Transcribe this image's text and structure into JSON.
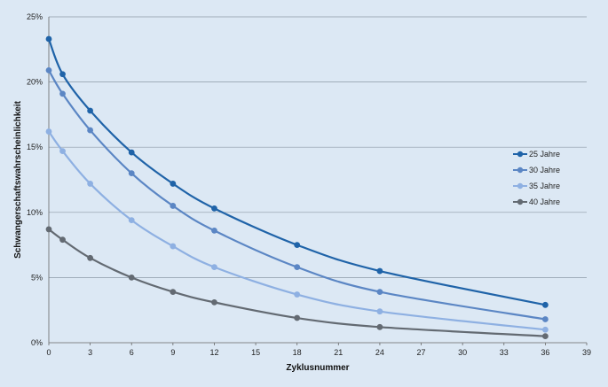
{
  "chart_data": {
    "type": "line",
    "title": "",
    "xlabel": "Zyklusnummer",
    "ylabel": "Schwangerschaftswahrscheinlichkeit",
    "xlim": [
      0,
      39
    ],
    "ylim": [
      0,
      25
    ],
    "xticks": [
      "0",
      "3",
      "6",
      "9",
      "12",
      "15",
      "18",
      "21",
      "24",
      "27",
      "30",
      "33",
      "36",
      "39"
    ],
    "yticks": [
      "0%",
      "5%",
      "10%",
      "15%",
      "20%",
      "25%"
    ],
    "grid": "horizontal",
    "legend_position": "right",
    "x": [
      0,
      1,
      3,
      6,
      9,
      12,
      18,
      24,
      36
    ],
    "series": [
      {
        "name": "25 Jahre",
        "color": "#1f63a8",
        "values": [
          23.3,
          20.6,
          17.8,
          14.6,
          12.2,
          10.3,
          7.5,
          5.5,
          2.9
        ]
      },
      {
        "name": "30 Jahre",
        "color": "#5b86c4",
        "values": [
          20.9,
          19.1,
          16.3,
          13.0,
          10.5,
          8.6,
          5.8,
          3.9,
          1.8
        ]
      },
      {
        "name": "35 Jahre",
        "color": "#8eb0e2",
        "values": [
          16.2,
          14.7,
          12.2,
          9.4,
          7.4,
          5.8,
          3.7,
          2.4,
          1.0
        ]
      },
      {
        "name": "40 Jahre",
        "color": "#636a72",
        "values": [
          8.7,
          7.9,
          6.5,
          5.0,
          3.9,
          3.1,
          1.9,
          1.2,
          0.5
        ]
      }
    ]
  }
}
